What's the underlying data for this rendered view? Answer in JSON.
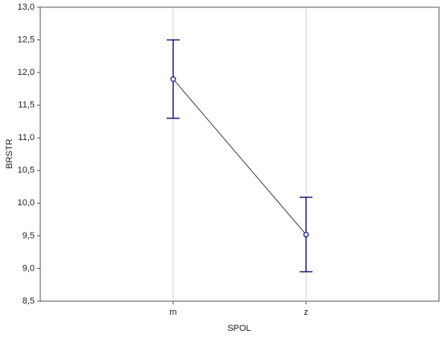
{
  "chart_data": {
    "type": "line",
    "x_label": "SPOL",
    "y_label": "BRSTR",
    "categories": [
      "m",
      "z"
    ],
    "values": [
      11.9,
      9.52
    ],
    "errors": [
      0.6,
      0.57
    ],
    "color": "#1f1f7a",
    "line_color": "#3a3a3a",
    "ylim": [
      8.5,
      13.0
    ],
    "yticks": [
      {
        "value": 8.5,
        "label": "8,5"
      },
      {
        "value": 9.0,
        "label": "9,0"
      },
      {
        "value": 9.5,
        "label": "9,5"
      },
      {
        "value": 10.0,
        "label": "10,0"
      },
      {
        "value": 10.5,
        "label": "10,5"
      },
      {
        "value": 11.0,
        "label": "11,0"
      },
      {
        "value": 11.5,
        "label": "11,5"
      },
      {
        "value": 12.0,
        "label": "12,0"
      },
      {
        "value": 12.5,
        "label": "12,5"
      },
      {
        "value": 13.0,
        "label": "13,0"
      }
    ],
    "xgrid": true
  }
}
